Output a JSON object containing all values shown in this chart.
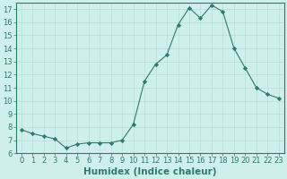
{
  "x": [
    0,
    1,
    2,
    3,
    4,
    5,
    6,
    7,
    8,
    9,
    10,
    11,
    12,
    13,
    14,
    15,
    16,
    17,
    18,
    19,
    20,
    21,
    22,
    23
  ],
  "y": [
    7.8,
    7.5,
    7.3,
    7.1,
    6.4,
    6.7,
    6.8,
    6.8,
    6.8,
    7.0,
    8.2,
    11.5,
    12.8,
    13.5,
    15.8,
    17.1,
    16.3,
    17.3,
    16.8,
    14.0,
    12.5,
    11.0,
    10.5,
    10.2
  ],
  "xlabel": "Humidex (Indice chaleur)",
  "bg_color": "#cff0ea",
  "line_color": "#2d7a6e",
  "marker": "D",
  "marker_size": 2.2,
  "ylim": [
    6,
    17.5
  ],
  "xlim": [
    -0.5,
    23.5
  ],
  "yticks": [
    6,
    7,
    8,
    9,
    10,
    11,
    12,
    13,
    14,
    15,
    16,
    17
  ],
  "xticks": [
    0,
    1,
    2,
    3,
    4,
    5,
    6,
    7,
    8,
    9,
    10,
    11,
    12,
    13,
    14,
    15,
    16,
    17,
    18,
    19,
    20,
    21,
    22,
    23
  ],
  "grid_color": "#b8ddd7",
  "tick_label_size": 6.0,
  "xlabel_size": 7.5
}
